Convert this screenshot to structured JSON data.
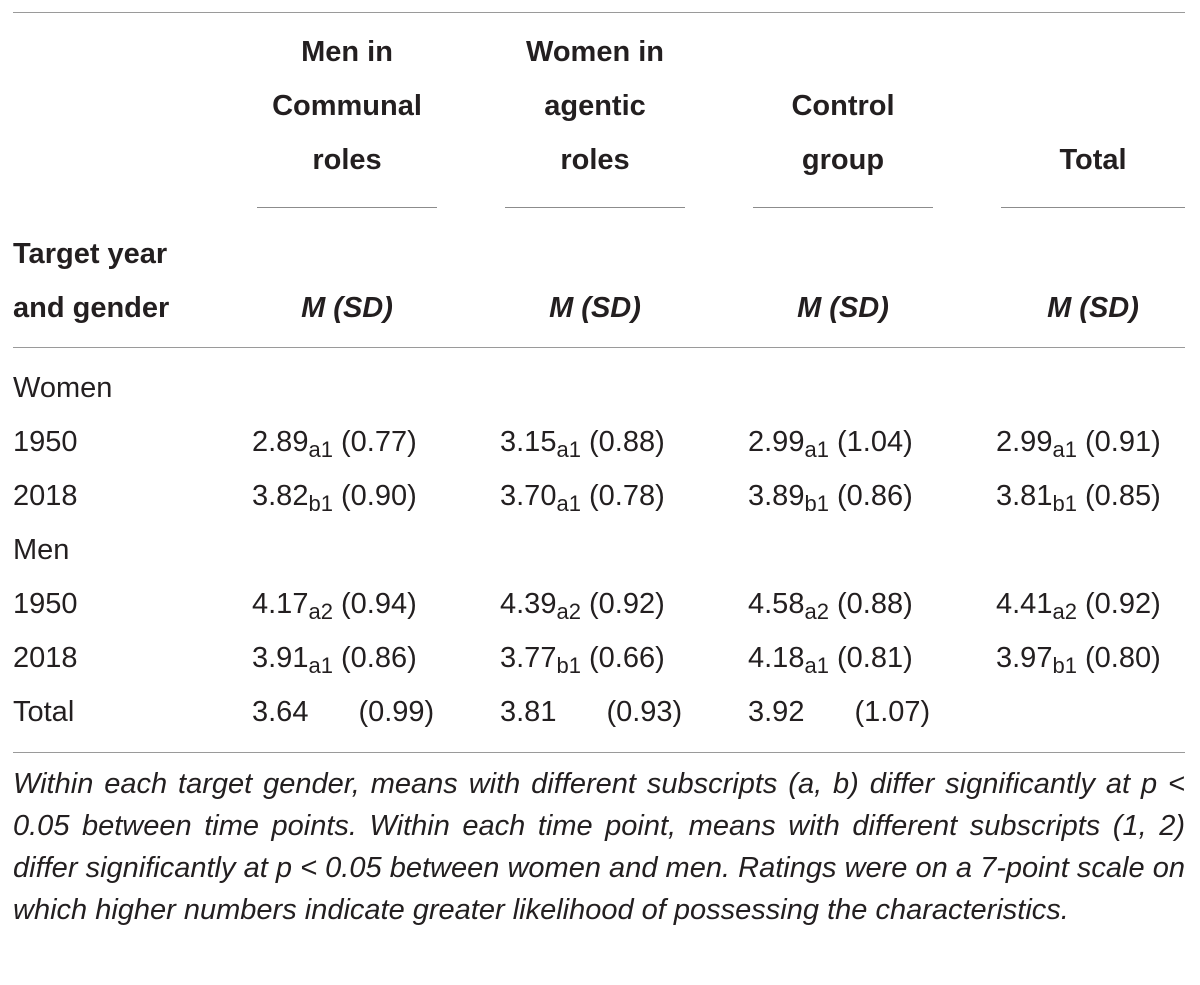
{
  "header": {
    "columns": [
      {
        "lines": [
          "Men in",
          "Communal",
          "roles"
        ],
        "stat": "M (SD)"
      },
      {
        "lines": [
          "Women in",
          "agentic",
          "roles"
        ],
        "stat": "M (SD)"
      },
      {
        "lines": [
          "Control",
          "group"
        ],
        "stat": "M (SD)"
      },
      {
        "lines": [
          "Total"
        ],
        "stat": "M (SD)"
      }
    ],
    "stub_lines": [
      "Target year",
      "and gender"
    ]
  },
  "rows": [
    {
      "label": "Women",
      "cells": []
    },
    {
      "label": "1950",
      "cells": [
        {
          "mean": "2.89",
          "sub": "a1",
          "sd": "(0.77)"
        },
        {
          "mean": "3.15",
          "sub": "a1",
          "sd": "(0.88)"
        },
        {
          "mean": "2.99",
          "sub": "a1",
          "sd": "(1.04)"
        },
        {
          "mean": "2.99",
          "sub": "a1",
          "sd": "(0.91)"
        }
      ]
    },
    {
      "label": "2018",
      "cells": [
        {
          "mean": "3.82",
          "sub": "b1",
          "sd": "(0.90)"
        },
        {
          "mean": "3.70",
          "sub": "a1",
          "sd": "(0.78)"
        },
        {
          "mean": "3.89",
          "sub": "b1",
          "sd": "(0.86)"
        },
        {
          "mean": "3.81",
          "sub": "b1",
          "sd": "(0.85)"
        }
      ]
    },
    {
      "label": "Men",
      "cells": []
    },
    {
      "label": "1950",
      "cells": [
        {
          "mean": "4.17",
          "sub": "a2",
          "sd": "(0.94)"
        },
        {
          "mean": "4.39",
          "sub": "a2",
          "sd": "(0.92)"
        },
        {
          "mean": "4.58",
          "sub": "a2",
          "sd": "(0.88)"
        },
        {
          "mean": "4.41",
          "sub": "a2",
          "sd": "(0.92)"
        }
      ]
    },
    {
      "label": "2018",
      "cells": [
        {
          "mean": "3.91",
          "sub": "a1",
          "sd": "(0.86)"
        },
        {
          "mean": "3.77",
          "sub": "b1",
          "sd": "(0.66)"
        },
        {
          "mean": "4.18",
          "sub": "a1",
          "sd": "(0.81)"
        },
        {
          "mean": "3.97",
          "sub": "b1",
          "sd": "(0.80)"
        }
      ]
    },
    {
      "label": "Total",
      "cells": [
        {
          "mean": "3.64",
          "sub": "",
          "sd": "(0.99)"
        },
        {
          "mean": "3.81",
          "sub": "",
          "sd": "(0.93)"
        },
        {
          "mean": "3.92",
          "sub": "",
          "sd": "(1.07)"
        }
      ]
    }
  ],
  "note": "Within each target gender, means with different subscripts (a, b) differ significantly at p < 0.05 between time points. Within each time point, means with different subscripts (1, 2) differ significantly at p < 0.05 between women and men. Ratings were on a 7-point scale on which higher numbers indicate greater likelihood of possessing the characteristics."
}
